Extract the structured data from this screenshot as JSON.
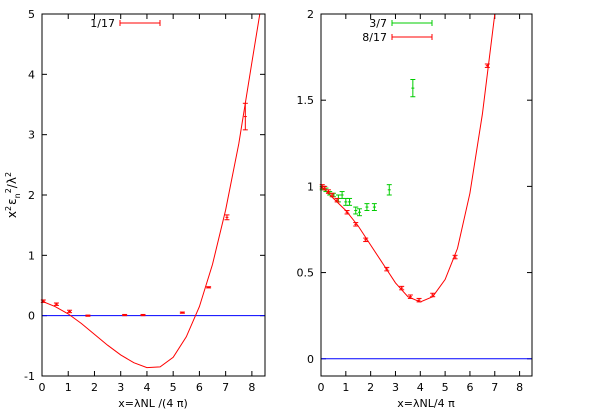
{
  "chart_data": [
    {
      "type": "scatter",
      "xlabel": "x=λNL /(4 π)",
      "ylabel": {
        "base": "x",
        "sup1": "2",
        "eps": "ε",
        "sub": "n",
        "sup2": "2",
        "slash": "/λ",
        "sup3": "2"
      },
      "xlim": [
        0,
        8.5
      ],
      "ylim": [
        -1,
        5
      ],
      "xticks": [
        "0",
        "1",
        "2",
        "3",
        "4",
        "5",
        "6",
        "7",
        "8"
      ],
      "yticks": [
        "-1",
        "0",
        "1",
        "2",
        "3",
        "4",
        "5"
      ],
      "legend_position": "top-left",
      "zero_line": {
        "y": 0,
        "color": "#0000ff"
      },
      "series": [
        {
          "name": "1/17",
          "color": "#ff0000",
          "x": [
            0.05,
            0.55,
            1.05,
            1.75,
            3.15,
            3.85,
            5.35,
            6.35,
            7.05,
            7.75
          ],
          "y": [
            0.24,
            0.19,
            0.07,
            0.0,
            0.01,
            0.01,
            0.05,
            0.47,
            1.63,
            3.3
          ],
          "err": [
            0.02,
            0.02,
            0.02,
            0.01,
            0.01,
            0.01,
            0.01,
            0.01,
            0.04,
            0.22
          ]
        }
      ],
      "fit_curve": {
        "color": "#ff0000",
        "x": [
          0,
          0.5,
          1,
          1.5,
          2,
          2.5,
          3,
          3.5,
          4,
          4.5,
          5,
          5.5,
          6,
          6.5,
          7,
          7.5,
          8,
          8.3
        ],
        "y": [
          0.24,
          0.15,
          0.03,
          -0.13,
          -0.31,
          -0.49,
          -0.65,
          -0.78,
          -0.86,
          -0.85,
          -0.69,
          -0.35,
          0.15,
          0.85,
          1.75,
          2.85,
          4.2,
          5.0
        ]
      }
    },
    {
      "type": "scatter",
      "xlabel": "x=λNL/4 π",
      "xlim": [
        0,
        8.5
      ],
      "ylim": [
        -0.1,
        2
      ],
      "xticks": [
        "0",
        "1",
        "2",
        "3",
        "4",
        "5",
        "6",
        "7",
        "8"
      ],
      "yticks": [
        "0",
        "0.5",
        "1",
        "1.5",
        "2"
      ],
      "legend_position": "top-left",
      "zero_line": {
        "y": 0,
        "color": "#0000ff"
      },
      "series": [
        {
          "name": "3/7",
          "color": "#00cc00",
          "x": [
            0.05,
            0.2,
            0.35,
            0.5,
            0.7,
            0.85,
            1.0,
            1.15,
            1.4,
            1.55,
            1.85,
            2.15,
            2.75,
            3.7
          ],
          "y": [
            0.99,
            0.98,
            0.96,
            0.95,
            0.93,
            0.95,
            0.91,
            0.91,
            0.86,
            0.85,
            0.88,
            0.88,
            0.98,
            1.57
          ],
          "err": [
            0.01,
            0.01,
            0.01,
            0.01,
            0.02,
            0.02,
            0.02,
            0.02,
            0.02,
            0.02,
            0.02,
            0.02,
            0.03,
            0.05
          ]
        },
        {
          "name": "8/17",
          "color": "#ff0000",
          "x": [
            0.05,
            0.15,
            0.3,
            0.45,
            0.65,
            1.05,
            1.4,
            1.8,
            2.65,
            3.25,
            3.6,
            3.95,
            4.5,
            5.4,
            6.7
          ],
          "y": [
            1.0,
            0.99,
            0.97,
            0.95,
            0.92,
            0.85,
            0.78,
            0.69,
            0.52,
            0.41,
            0.36,
            0.34,
            0.37,
            0.59,
            1.7
          ],
          "err": [
            0.01,
            0.01,
            0.01,
            0.01,
            0.01,
            0.01,
            0.01,
            0.01,
            0.01,
            0.01,
            0.01,
            0.01,
            0.01,
            0.01,
            0.01
          ]
        }
      ],
      "fit_curve": {
        "color": "#ff0000",
        "x": [
          0,
          0.5,
          1,
          1.5,
          2,
          2.5,
          3,
          3.5,
          4,
          4.5,
          5,
          5.5,
          6,
          6.5,
          7
        ],
        "y": [
          1.0,
          0.93,
          0.86,
          0.77,
          0.66,
          0.55,
          0.44,
          0.36,
          0.33,
          0.36,
          0.46,
          0.64,
          0.96,
          1.42,
          2.0
        ]
      }
    }
  ]
}
